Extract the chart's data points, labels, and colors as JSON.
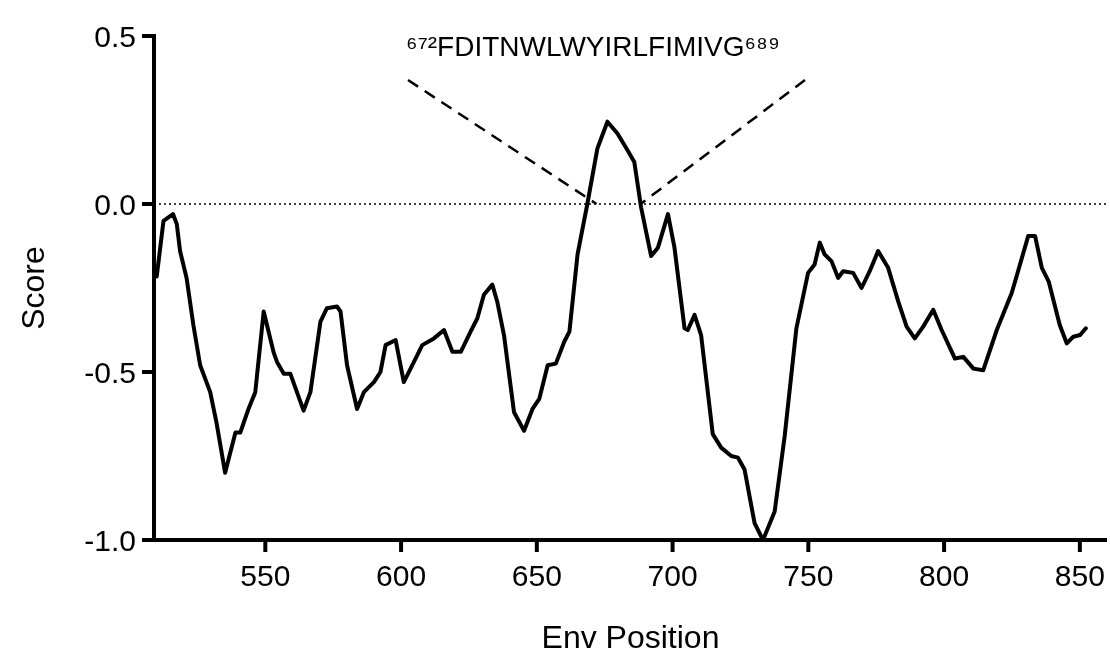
{
  "chart_data": {
    "type": "line",
    "xlabel": "Env Position",
    "ylabel": "Score",
    "xlim": [
      509,
      860
    ],
    "xticks": [
      550,
      600,
      650,
      700,
      750,
      800,
      850
    ],
    "ylim": [
      -1,
      0.5
    ],
    "yticks": [
      {
        "value": 0.5,
        "label": "0.5"
      },
      {
        "value": 0,
        "label": "0.0"
      },
      {
        "value": -0.5,
        "label": "-0.5"
      },
      {
        "value": -1,
        "label": "-1.0"
      }
    ],
    "grid": false,
    "marker": "none",
    "line_style": "solid",
    "ref_lines": [
      {
        "axis": "y",
        "value": 0,
        "line_style": "dotted",
        "color": "#000000"
      }
    ],
    "annotations": [
      {
        "text": "⁶⁷²FDITNWLWYIRLFIMIVG⁶⁸⁹",
        "x": 672,
        "y": 0
      }
    ],
    "series": [
      {
        "color": "#000000",
        "x": [
          510,
          512.5,
          516,
          517.4,
          518.6,
          521,
          523.5,
          526,
          529.7,
          532,
          535.2,
          539,
          540.8,
          543.8,
          546.3,
          549.4,
          553,
          554.3,
          556.8,
          559.2,
          564.1,
          566.6,
          570.3,
          572.7,
          576.4,
          577.7,
          580.1,
          583.8,
          586.3,
          590,
          592.4,
          594.3,
          598,
          601,
          603.5,
          607.8,
          612.1,
          615.8,
          618.9,
          622,
          625.6,
          628.1,
          630.5,
          633.6,
          635.4,
          637.9,
          641.6,
          645.3,
          648.4,
          650.9,
          654,
          657,
          660.1,
          662,
          665,
          668.6,
          672.3,
          676,
          679.7,
          683.4,
          685.9,
          688.4,
          692.1,
          694.6,
          698.3,
          700.7,
          704.4,
          705.6,
          708.1,
          710.5,
          714.8,
          717.9,
          721.6,
          724.1,
          726.5,
          730.2,
          733.3,
          737.6,
          741.3,
          745.6,
          749.9,
          752.3,
          754.2,
          756,
          758.5,
          761,
          762.8,
          766.5,
          769.6,
          772.6,
          775.7,
          779.4,
          783.1,
          786.2,
          789.2,
          792.3,
          796,
          799.1,
          804,
          807.1,
          810.8,
          814.4,
          819.4,
          824.9,
          831,
          833.5,
          836,
          838.5,
          842.6,
          845.2,
          847.6,
          850.1,
          852.2
        ],
        "values": [
          -0.216,
          -0.05,
          -0.03,
          -0.06,
          -0.14,
          -0.22,
          -0.36,
          -0.48,
          -0.56,
          -0.65,
          -0.8,
          -0.68,
          -0.68,
          -0.61,
          -0.56,
          -0.32,
          -0.44,
          -0.47,
          -0.505,
          -0.505,
          -0.615,
          -0.56,
          -0.35,
          -0.31,
          -0.305,
          -0.32,
          -0.48,
          -0.61,
          -0.56,
          -0.53,
          -0.5,
          -0.42,
          -0.405,
          -0.53,
          -0.49,
          -0.42,
          -0.4,
          -0.375,
          -0.44,
          -0.44,
          -0.38,
          -0.34,
          -0.27,
          -0.24,
          -0.29,
          -0.39,
          -0.62,
          -0.675,
          -0.61,
          -0.58,
          -0.48,
          -0.475,
          -0.41,
          -0.38,
          -0.15,
          0,
          0.165,
          0.245,
          0.21,
          0.16,
          0.125,
          -0.01,
          -0.155,
          -0.13,
          -0.03,
          -0.13,
          -0.37,
          -0.375,
          -0.33,
          -0.39,
          -0.685,
          -0.725,
          -0.75,
          -0.755,
          -0.79,
          -0.95,
          -1,
          -0.915,
          -0.69,
          -0.37,
          -0.205,
          -0.18,
          -0.115,
          -0.15,
          -0.17,
          -0.22,
          -0.2,
          -0.205,
          -0.25,
          -0.2,
          -0.14,
          -0.19,
          -0.29,
          -0.365,
          -0.4,
          -0.365,
          -0.315,
          -0.375,
          -0.46,
          -0.455,
          -0.49,
          -0.495,
          -0.375,
          -0.265,
          -0.095,
          -0.095,
          -0.19,
          -0.23,
          -0.36,
          -0.415,
          -0.395,
          -0.39,
          -0.37
        ]
      }
    ]
  }
}
